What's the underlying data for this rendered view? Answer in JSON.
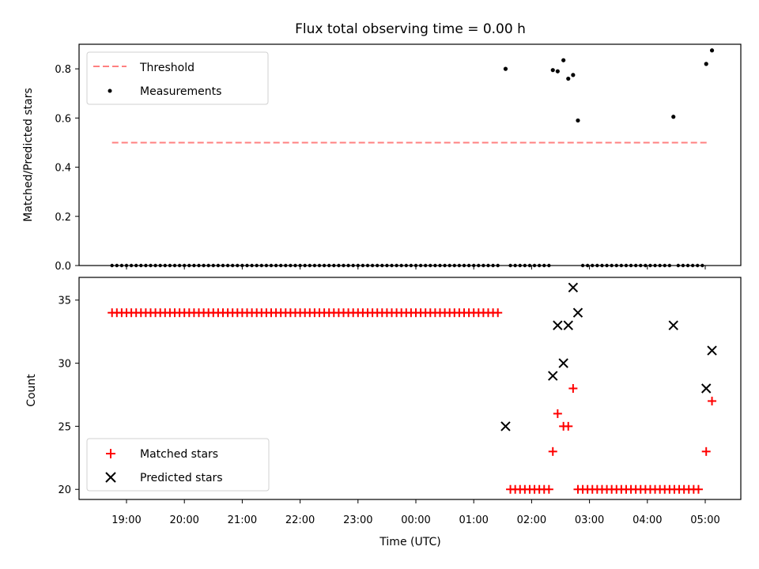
{
  "chart_data": [
    {
      "type": "scatter",
      "title": "Flux total observing time = 0.00 h",
      "ylabel": "Matched/Predicted stars",
      "ylim": [
        0,
        0.9
      ],
      "yticks": [
        "0.0",
        "0.2",
        "0.4",
        "0.6",
        "0.8"
      ],
      "threshold": {
        "name": "Threshold",
        "value": 0.5,
        "color": "#ff8080",
        "x_start": "18:45",
        "x_end": "05:03"
      },
      "legend": {
        "placement": "top-left"
      },
      "series": [
        {
          "name": "Measurements",
          "color": "#000000",
          "points": [
            [
              "01:33",
              0.8
            ],
            [
              "02:22",
              0.795
            ],
            [
              "02:27",
              0.79
            ],
            [
              "02:33",
              0.835
            ],
            [
              "02:38",
              0.76
            ],
            [
              "02:43",
              0.775
            ],
            [
              "02:48",
              0.59
            ],
            [
              "04:27",
              0.605
            ],
            [
              "05:01",
              0.82
            ],
            [
              "05:07",
              0.875
            ]
          ],
          "zero_ranges": [
            [
              "18:45",
              "01:28"
            ],
            [
              "01:38",
              "02:20"
            ],
            [
              "02:53",
              "04:23"
            ],
            [
              "04:32",
              "04:57"
            ]
          ]
        }
      ]
    },
    {
      "type": "scatter",
      "xlabel": "Time (UTC)",
      "ylabel": "Count",
      "ylim": [
        19.2,
        36.8
      ],
      "yticks": [
        "20",
        "25",
        "30",
        "35"
      ],
      "xticks": [
        "19:00",
        "20:00",
        "21:00",
        "22:00",
        "23:00",
        "00:00",
        "01:00",
        "02:00",
        "03:00",
        "04:00",
        "05:00"
      ],
      "legend": {
        "placement": "bottom-left"
      },
      "series": [
        {
          "name": "Matched stars",
          "marker": "plus",
          "color": "#ff0000",
          "ranges": [
            {
              "from": "18:45",
              "to": "01:28",
              "value": 34
            },
            {
              "from": "01:38",
              "to": "02:18",
              "value": 20
            },
            {
              "from": "02:48",
              "to": "04:57",
              "value": 20
            }
          ],
          "points": [
            [
              "02:22",
              23
            ],
            [
              "02:27",
              26
            ],
            [
              "02:33",
              25
            ],
            [
              "02:38",
              25
            ],
            [
              "02:43",
              28
            ],
            [
              "05:01",
              23
            ],
            [
              "05:07",
              27
            ]
          ]
        },
        {
          "name": "Predicted stars",
          "marker": "x",
          "color": "#000000",
          "points": [
            [
              "01:33",
              25
            ],
            [
              "02:22",
              29
            ],
            [
              "02:27",
              33
            ],
            [
              "02:33",
              30
            ],
            [
              "02:38",
              33
            ],
            [
              "02:43",
              36
            ],
            [
              "02:48",
              34
            ],
            [
              "04:27",
              33
            ],
            [
              "05:01",
              28
            ],
            [
              "05:07",
              31
            ]
          ]
        }
      ]
    }
  ]
}
